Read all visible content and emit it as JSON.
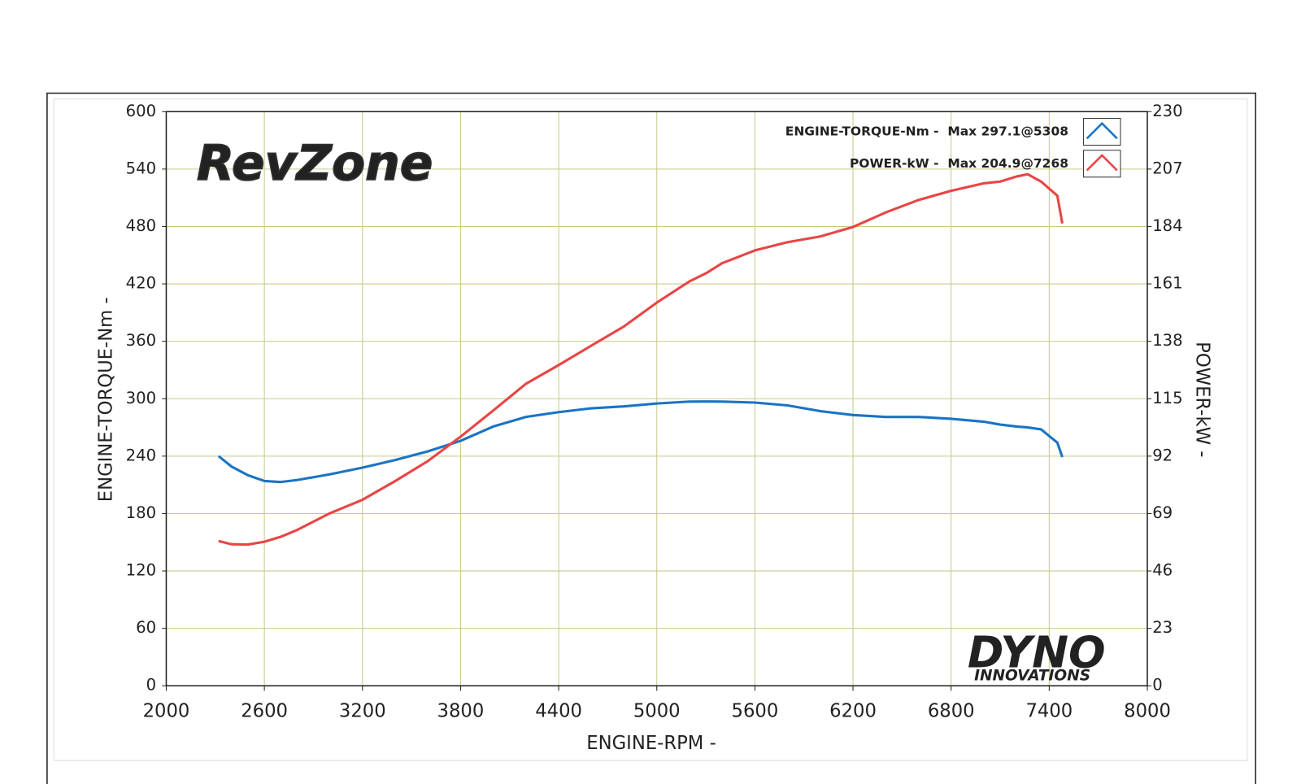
{
  "chart_data": {
    "type": "line",
    "x_label": "ENGINE-RPM -",
    "y_label": "ENGINE-TORQUE-Nm -",
    "y2_label": "POWER-kW -",
    "annotations": [
      "RevZone",
      "DYNO",
      "INNOVATIONS"
    ],
    "x": [
      2320,
      2400,
      2500,
      2600,
      2700,
      2800,
      3000,
      3200,
      3400,
      3600,
      3800,
      4000,
      4200,
      4400,
      4600,
      4800,
      5000,
      5200,
      5308,
      5400,
      5600,
      5800,
      6000,
      6200,
      6400,
      6600,
      6800,
      7000,
      7100,
      7200,
      7268,
      7350,
      7450,
      7480
    ],
    "series": [
      {
        "name": "ENGINE-TORQUE-Nm -  Max 297.1@5308",
        "color": "#1a74c4",
        "values": [
          240,
          229,
          220,
          214,
          213,
          215,
          221,
          228,
          236,
          245,
          256,
          271,
          281,
          286,
          290,
          292,
          295,
          297,
          297.1,
          297,
          296,
          293,
          287,
          283,
          281,
          281,
          279,
          276,
          273,
          271,
          270,
          268,
          254,
          239
        ]
      },
      {
        "name": "POWER-kW -  Max 204.9@7268",
        "color": "#e84545",
        "axis": "y2",
        "values": [
          58,
          56.7,
          56.6,
          57.7,
          59.7,
          62.4,
          69.1,
          74.5,
          82,
          90,
          99.8,
          110.3,
          121,
          128.5,
          136.3,
          144,
          153.5,
          162,
          165.5,
          169.3,
          174.4,
          177.7,
          180,
          183.8,
          189.6,
          194.6,
          198.3,
          201.3,
          202,
          204,
          204.9,
          202,
          196.3,
          185.2
        ]
      }
    ],
    "xlim": [
      2000,
      8000
    ],
    "xticks": [
      2000,
      2600,
      3200,
      3800,
      4400,
      5000,
      5600,
      6200,
      6800,
      7400,
      8000
    ],
    "ylim": [
      0,
      600
    ],
    "yticks": [
      0,
      60,
      120,
      180,
      240,
      300,
      360,
      420,
      480,
      540,
      600
    ],
    "y2lim": [
      0,
      230
    ],
    "y2ticks": [
      0,
      23,
      46,
      69,
      92,
      115,
      138,
      161,
      184,
      207,
      230
    ],
    "grid": true,
    "legend": "upper right"
  }
}
